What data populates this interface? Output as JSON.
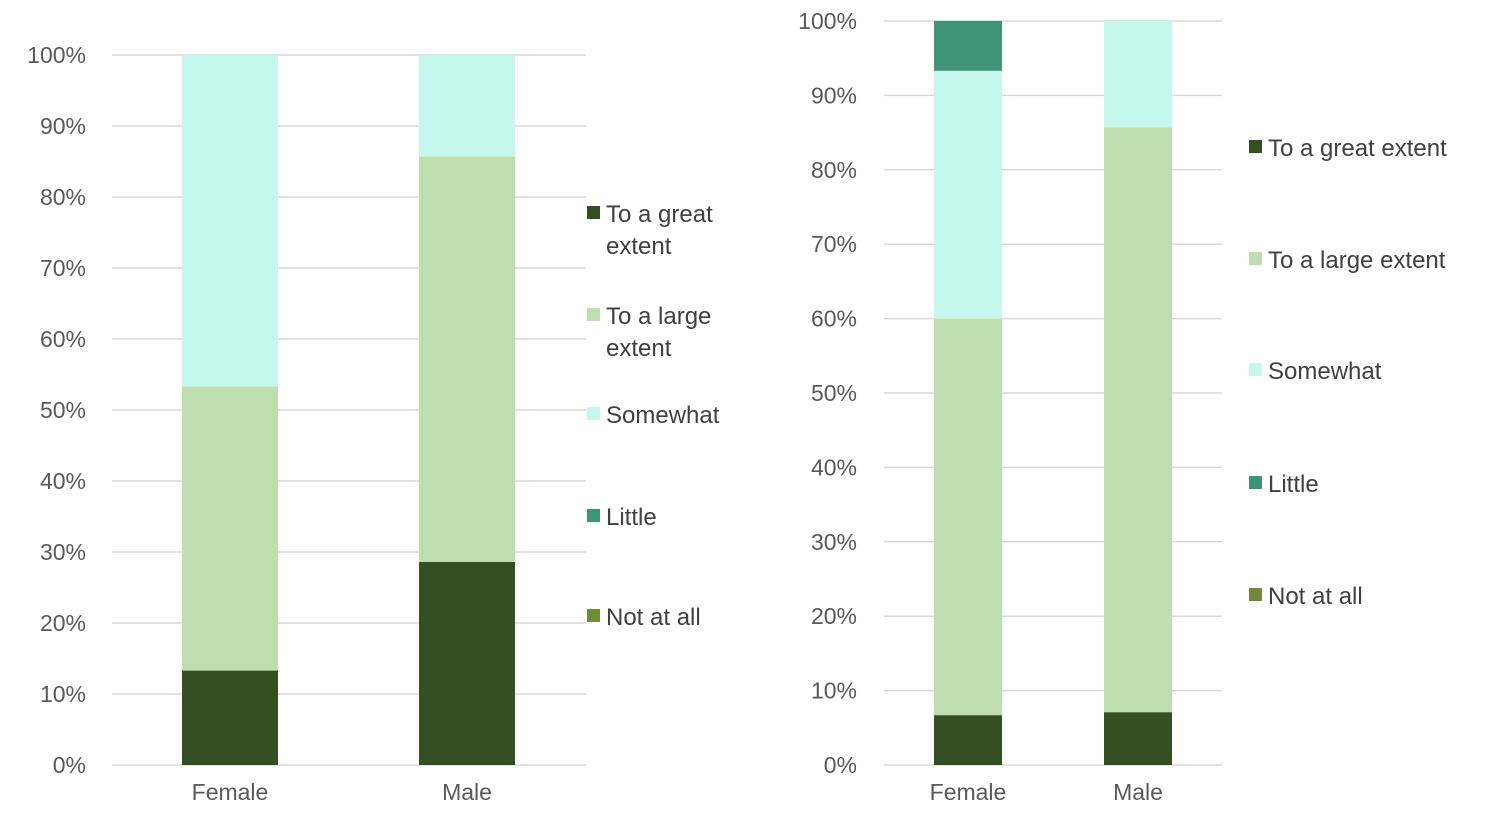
{
  "colors": {
    "To a great extent": "#344f21",
    "To a large extent": "#bfdeb0",
    "Somewhat": "#c5f7ec",
    "Little": "#3f9477",
    "Not at all": "#6f8b3a",
    "grid": "#d9d9d9",
    "axis_text": "#595959"
  },
  "chart_data": [
    {
      "type": "bar",
      "stacked": true,
      "categories": [
        "Female",
        "Male"
      ],
      "ylim": [
        0,
        1
      ],
      "yticks": [
        "0%",
        "10%",
        "20%",
        "30%",
        "40%",
        "50%",
        "60%",
        "70%",
        "80%",
        "90%",
        "100%"
      ],
      "grid": true,
      "legend_position": "right",
      "legend": [
        {
          "lines": [
            "To a great",
            "extent"
          ]
        },
        {
          "lines": [
            "To a large",
            "extent"
          ]
        },
        {
          "lines": [
            "Somewhat"
          ]
        },
        {
          "lines": [
            "Little"
          ]
        },
        {
          "lines": [
            "Not at all"
          ]
        }
      ],
      "series": [
        {
          "name": "Not at all",
          "values": [
            0,
            0
          ]
        },
        {
          "name": "To a great extent",
          "values": [
            0.133,
            0.286
          ]
        },
        {
          "name": "To a large extent",
          "values": [
            0.4,
            0.571
          ]
        },
        {
          "name": "Little",
          "values": [
            0,
            0
          ]
        },
        {
          "name": "Somewhat",
          "values": [
            0.467,
            0.143
          ]
        }
      ]
    },
    {
      "type": "bar",
      "stacked": true,
      "categories": [
        "Female",
        "Male"
      ],
      "ylim": [
        0,
        1
      ],
      "yticks": [
        "0%",
        "10%",
        "20%",
        "30%",
        "40%",
        "50%",
        "60%",
        "70%",
        "80%",
        "90%",
        "100%"
      ],
      "grid": true,
      "legend_position": "right",
      "legend": [
        {
          "lines": [
            "To a great extent"
          ]
        },
        {
          "lines": [
            "To a large extent"
          ]
        },
        {
          "lines": [
            "Somewhat"
          ]
        },
        {
          "lines": [
            "Little"
          ]
        },
        {
          "lines": [
            "Not at all"
          ]
        }
      ],
      "series": [
        {
          "name": "Not at all",
          "values": [
            0,
            0
          ]
        },
        {
          "name": "To a great extent",
          "values": [
            0.067,
            0.071
          ]
        },
        {
          "name": "To a large extent",
          "values": [
            0.533,
            0.786
          ]
        },
        {
          "name": "Somewhat",
          "values": [
            0.333,
            0.143
          ]
        },
        {
          "name": "Little",
          "values": [
            0.067,
            0
          ]
        }
      ]
    }
  ]
}
